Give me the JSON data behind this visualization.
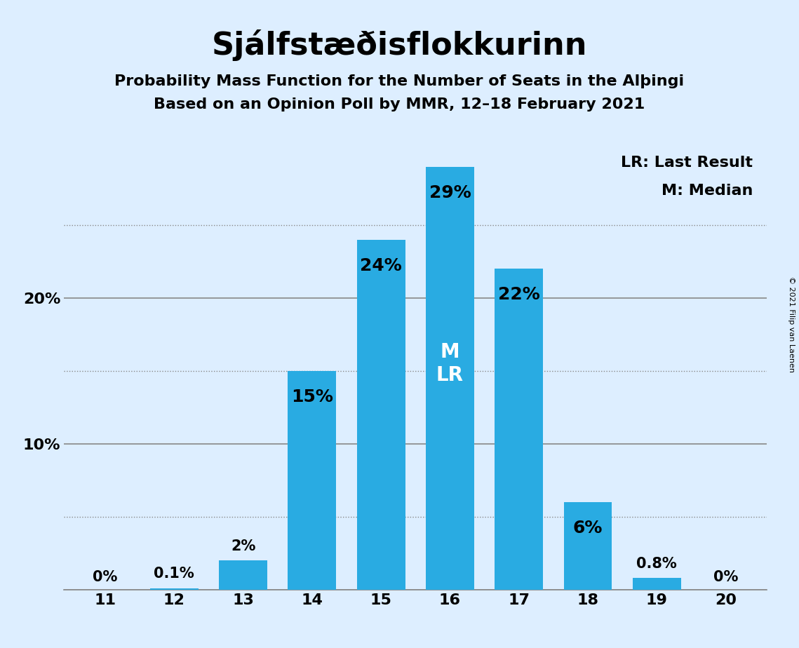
{
  "title": "Sjálfstæðisflokkurinn",
  "subtitle1": "Probability Mass Function for the Number of Seats in the Alþingi",
  "subtitle2": "Based on an Opinion Poll by MMR, 12–18 February 2021",
  "copyright_text": "© 2021 Filip van Laenen",
  "legend_lines": [
    "LR: Last Result",
    "M: Median"
  ],
  "seats": [
    11,
    12,
    13,
    14,
    15,
    16,
    17,
    18,
    19,
    20
  ],
  "probabilities": [
    0.0,
    0.1,
    2.0,
    15.0,
    24.0,
    29.0,
    22.0,
    6.0,
    0.8,
    0.0
  ],
  "labels": [
    "0%",
    "0.1%",
    "2%",
    "15%",
    "24%",
    "29%",
    "22%",
    "6%",
    "0.8%",
    "0%"
  ],
  "bar_color": "#29ABE2",
  "highlight_seat": 16,
  "median_seat": 16,
  "last_result_seat": 16,
  "background_color": "#DDEEFF",
  "grid_color": "#888888",
  "solid_gridlines": [
    0,
    10,
    20
  ],
  "dotted_gridlines": [
    5,
    15,
    25
  ],
  "ylim": [
    0,
    32
  ],
  "bar_width": 0.7,
  "title_fontsize": 32,
  "subtitle_fontsize": 16,
  "label_fontsize": 15,
  "tick_fontsize": 16,
  "legend_fontsize": 16,
  "annotation_fontsize": 18,
  "inside_label_color": "white",
  "outside_label_color": "black"
}
